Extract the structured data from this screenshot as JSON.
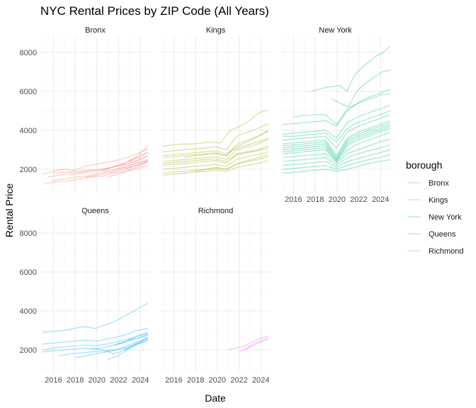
{
  "chart_data": {
    "type": "line",
    "title": "NYC Rental Prices by ZIP Code (All Years)",
    "xlabel": "Date",
    "ylabel": "Rental Price",
    "x_ticks": [
      "2016",
      "2018",
      "2020",
      "2022",
      "2024"
    ],
    "x_range": [
      2014.8,
      2024.9
    ],
    "y_ticks": [
      2000,
      4000,
      6000,
      8000
    ],
    "ylim": [
      800,
      8800
    ],
    "grid": true,
    "legend": {
      "title": "borough",
      "position": "right",
      "entries": [
        {
          "name": "Bronx",
          "color": "#F8766D"
        },
        {
          "name": "Kings",
          "color": "#A3A500"
        },
        {
          "name": "New York",
          "color": "#00BF7D"
        },
        {
          "name": "Queens",
          "color": "#00B0F6"
        },
        {
          "name": "Richmond",
          "color": "#E76BF3"
        }
      ]
    },
    "facets": [
      {
        "name": "Bronx",
        "series": [
          {
            "start": 2015.0,
            "end": 2024.7,
            "values": [
              1750,
              1900,
              2000,
              1950,
              2150,
              2250,
              2350,
              2450,
              2600,
              2800,
              3050
            ]
          },
          {
            "start": 2015.5,
            "end": 2024.7,
            "values": [
              1600,
              1700,
              1800,
              1850,
              1950,
              2000,
              2150,
              2250,
              2400,
              2700
            ]
          },
          {
            "start": 2015.2,
            "end": 2024.7,
            "values": [
              1250,
              1350,
              1400,
              1500,
              1600,
              1650,
              1800,
              1900,
              2100,
              2400
            ]
          },
          {
            "start": 2015.8,
            "end": 2024.7,
            "values": [
              1400,
              1500,
              1600,
              1650,
              1800,
              1900,
              2100,
              2300,
              2500
            ]
          },
          {
            "start": 2016.0,
            "end": 2024.7,
            "values": [
              1800,
              1850,
              1900,
              1950,
              2000,
              2100,
              2300,
              2600,
              2900
            ]
          },
          {
            "start": 2017.5,
            "end": 2024.7,
            "values": [
              1700,
              1800,
              1850,
              1950,
              2150,
              2350,
              2650,
              3200
            ]
          },
          {
            "start": 2019.0,
            "end": 2024.7,
            "values": [
              1600,
              1700,
              1800,
              1900,
              2050,
              2200,
              2400
            ]
          },
          {
            "start": 2020.5,
            "end": 2024.7,
            "values": [
              1900,
              2000,
              2100,
              2300,
              2450
            ]
          },
          {
            "start": 2021.0,
            "end": 2024.7,
            "values": [
              1600,
              1750,
              1900,
              2050,
              2200
            ]
          },
          {
            "start": 2022.0,
            "end": 2024.7,
            "values": [
              2100,
              2300,
              2500,
              2700
            ]
          },
          {
            "start": 2022.5,
            "end": 2024.7,
            "values": [
              2000,
              2200,
              2400
            ]
          },
          {
            "start": 2023.0,
            "end": 2024.7,
            "values": [
              2400,
              2600,
              2850
            ]
          }
        ]
      },
      {
        "name": "Kings",
        "series": [
          {
            "start": 2015.0,
            "end": 2024.7,
            "values": [
              3200,
              3250,
              3300,
              3300,
              3350,
              3400,
              3350,
              4000,
              4200,
              4500,
              4900,
              5050
            ]
          },
          {
            "start": 2015.0,
            "end": 2024.7,
            "values": [
              2900,
              2950,
              3000,
              3050,
              3100,
              3150,
              3000,
              3700,
              3900,
              4100,
              4350
            ]
          },
          {
            "start": 2015.0,
            "end": 2024.7,
            "values": [
              2600,
              2650,
              2700,
              2750,
              2800,
              2850,
              2700,
              3300,
              3500,
              3700,
              3950
            ]
          },
          {
            "start": 2015.0,
            "end": 2024.7,
            "values": [
              2400,
              2450,
              2500,
              2550,
              2600,
              2650,
              2500,
              3000,
              3150,
              3300,
              3550
            ]
          },
          {
            "start": 2015.0,
            "end": 2024.7,
            "values": [
              2200,
              2250,
              2300,
              2350,
              2400,
              2450,
              2300,
              2750,
              2850,
              2950,
              3100
            ]
          },
          {
            "start": 2015.0,
            "end": 2024.7,
            "values": [
              2000,
              2050,
              2100,
              2150,
              2200,
              2250,
              2150,
              2500,
              2650,
              2750,
              2900
            ]
          },
          {
            "start": 2015.0,
            "end": 2024.7,
            "values": [
              1800,
              1850,
              1900,
              1950,
              2000,
              2050,
              2000,
              2250,
              2400,
              2500,
              2650
            ]
          },
          {
            "start": 2015.0,
            "end": 2024.7,
            "values": [
              1700,
              1750,
              1800,
              1850,
              1900,
              1950,
              1900,
              2100,
              2200,
              2300,
              2450
            ]
          },
          {
            "start": 2015.0,
            "end": 2024.7,
            "values": [
              2700,
              2750,
              2800,
              2850,
              2900,
              2950,
              2800,
              3100,
              3250,
              3400,
              3600
            ]
          },
          {
            "start": 2015.0,
            "end": 2024.7,
            "values": [
              2300,
              2350,
              2400,
              2450,
              2500,
              2550,
              2400,
              2800,
              2900,
              3000,
              3200
            ]
          },
          {
            "start": 2017.0,
            "end": 2024.7,
            "values": [
              2600,
              2700,
              2750,
              2800,
              2700,
              3200,
              3400,
              3700,
              4000
            ]
          },
          {
            "start": 2018.0,
            "end": 2024.7,
            "values": [
              1900,
              2000,
              2100,
              2000,
              2300,
              2450,
              2600,
              2750
            ]
          }
        ]
      },
      {
        "name": "New York",
        "series": [
          {
            "start": 2017.6,
            "end": 2024.9,
            "values": [
              6000,
              6100,
              6200,
              6250,
              6300,
              6000,
              6800,
              7200,
              7500,
              7800,
              8000,
              8300
            ]
          },
          {
            "start": 2019.5,
            "end": 2024.9,
            "values": [
              5600,
              5400,
              5200,
              6000,
              6400,
              6700,
              7000,
              7100
            ]
          },
          {
            "start": 2015.0,
            "end": 2024.9,
            "values": [
              4300,
              4350,
              4400,
              4450,
              4500,
              4200,
              5000,
              5400,
              5700,
              5900,
              6100
            ]
          },
          {
            "start": 2015.0,
            "end": 2024.9,
            "values": [
              3800,
              3850,
              3900,
              3950,
              4000,
              3600,
              4400,
              4700,
              4900,
              5100,
              5300
            ]
          },
          {
            "start": 2015.0,
            "end": 2024.9,
            "values": [
              3500,
              3550,
              3600,
              3650,
              3700,
              3100,
              3900,
              4200,
              4400,
              4600,
              4800
            ]
          },
          {
            "start": 2015.0,
            "end": 2024.9,
            "values": [
              3300,
              3350,
              3400,
              3450,
              3500,
              2700,
              3600,
              3900,
              4100,
              4300,
              4500
            ]
          },
          {
            "start": 2015.0,
            "end": 2024.9,
            "values": [
              3200,
              3250,
              3300,
              3350,
              3400,
              2600,
              3500,
              3800,
              4000,
              4200,
              4400
            ]
          },
          {
            "start": 2015.0,
            "end": 2024.9,
            "values": [
              3100,
              3150,
              3200,
              3250,
              3300,
              2500,
              3400,
              3700,
              3900,
              4100,
              4300
            ]
          },
          {
            "start": 2015.0,
            "end": 2024.9,
            "values": [
              3000,
              3050,
              3100,
              3150,
              3200,
              2500,
              3300,
              3600,
              3800,
              4000,
              4200
            ]
          },
          {
            "start": 2015.0,
            "end": 2024.9,
            "values": [
              2900,
              2950,
              3000,
              3050,
              3100,
              2400,
              3200,
              3500,
              3700,
              3900,
              4100
            ]
          },
          {
            "start": 2015.0,
            "end": 2024.9,
            "values": [
              2800,
              2850,
              2900,
              2950,
              3000,
              2400,
              3000,
              3300,
              3500,
              3700,
              3900
            ]
          },
          {
            "start": 2015.0,
            "end": 2024.9,
            "values": [
              2600,
              2650,
              2700,
              2750,
              2800,
              2300,
              2800,
              3000,
              3200,
              3400,
              3550
            ]
          },
          {
            "start": 2015.0,
            "end": 2024.9,
            "values": [
              2400,
              2450,
              2500,
              2550,
              2600,
              2200,
              2600,
              2800,
              2950,
              3100,
              3250
            ]
          },
          {
            "start": 2015.0,
            "end": 2024.9,
            "values": [
              2200,
              2250,
              2300,
              2350,
              2400,
              2100,
              2400,
              2550,
              2700,
              2850,
              3000
            ]
          },
          {
            "start": 2015.0,
            "end": 2024.9,
            "values": [
              2000,
              2050,
              2100,
              2150,
              2200,
              2000,
              2200,
              2350,
              2500,
              2600,
              2750
            ]
          },
          {
            "start": 2015.0,
            "end": 2024.9,
            "values": [
              1800,
              1850,
              1900,
              1950,
              2000,
              1900,
              2000,
              2150,
              2300,
              2400,
              2500
            ]
          },
          {
            "start": 2015.0,
            "end": 2024.9,
            "values": [
              3700,
              3700,
              3750,
              3800,
              3850,
              3400,
              4100,
              4400,
              4600,
              4800,
              5000
            ]
          },
          {
            "start": 2016.0,
            "end": 2024.9,
            "values": [
              4700,
              4750,
              4800,
              4800,
              4300,
              5100,
              5400,
              5600,
              5800,
              5900
            ]
          }
        ]
      },
      {
        "name": "Queens",
        "series": [
          {
            "start": 2015.0,
            "end": 2024.7,
            "values": [
              2900,
              2950,
              3000,
              3100,
              3200,
              3100,
              3300,
              3500,
              3800,
              4100,
              4400
            ]
          },
          {
            "start": 2015.0,
            "end": 2024.7,
            "values": [
              2300,
              2350,
              2400,
              2450,
              2500,
              2450,
              2550,
              2650,
              2800,
              3000,
              3100
            ]
          },
          {
            "start": 2015.0,
            "end": 2024.7,
            "values": [
              2000,
              2100,
              2150,
              2200,
              2250,
              2200,
              2300,
              2400,
              2550,
              2700,
              2850
            ]
          },
          {
            "start": 2015.0,
            "end": 2024.7,
            "values": [
              1900,
              1950,
              2000,
              2050,
              2100,
              2050,
              2150,
              2300,
              2450,
              2600,
              2750
            ]
          },
          {
            "start": 2016.5,
            "end": 2024.7,
            "values": [
              1700,
              1800,
              1850,
              1900,
              1950,
              2000,
              2100,
              2300,
              2500
            ]
          },
          {
            "start": 2018.0,
            "end": 2024.7,
            "values": [
              1600,
              1700,
              1800,
              1900,
              2000,
              2200,
              2400,
              2600
            ]
          },
          {
            "start": 2019.5,
            "end": 2024.7,
            "values": [
              2100,
              2000,
              1800,
              2000,
              2300,
              2600
            ]
          },
          {
            "start": 2021.0,
            "end": 2024.7,
            "values": [
              1500,
              1700,
              2000,
              2300,
              2500
            ]
          },
          {
            "start": 2021.5,
            "end": 2024.7,
            "values": [
              2200,
              2400,
              2700,
              2900
            ]
          },
          {
            "start": 2022.0,
            "end": 2024.7,
            "values": [
              2300,
              2500,
              2600,
              2800
            ]
          },
          {
            "start": 2022.5,
            "end": 2024.7,
            "values": [
              2000,
              2200,
              2450,
              2650
            ]
          }
        ]
      },
      {
        "name": "Richmond",
        "series": [
          {
            "start": 2021.0,
            "end": 2024.7,
            "values": [
              2000,
              2100,
              2200,
              2400,
              2600,
              2700
            ]
          },
          {
            "start": 2022.0,
            "end": 2024.7,
            "values": [
              1900,
              2100,
              2300,
              2500,
              2600
            ]
          },
          {
            "start": 2022.5,
            "end": 2024.7,
            "values": [
              2000,
              2200,
              2400,
              2550
            ]
          }
        ]
      }
    ]
  }
}
